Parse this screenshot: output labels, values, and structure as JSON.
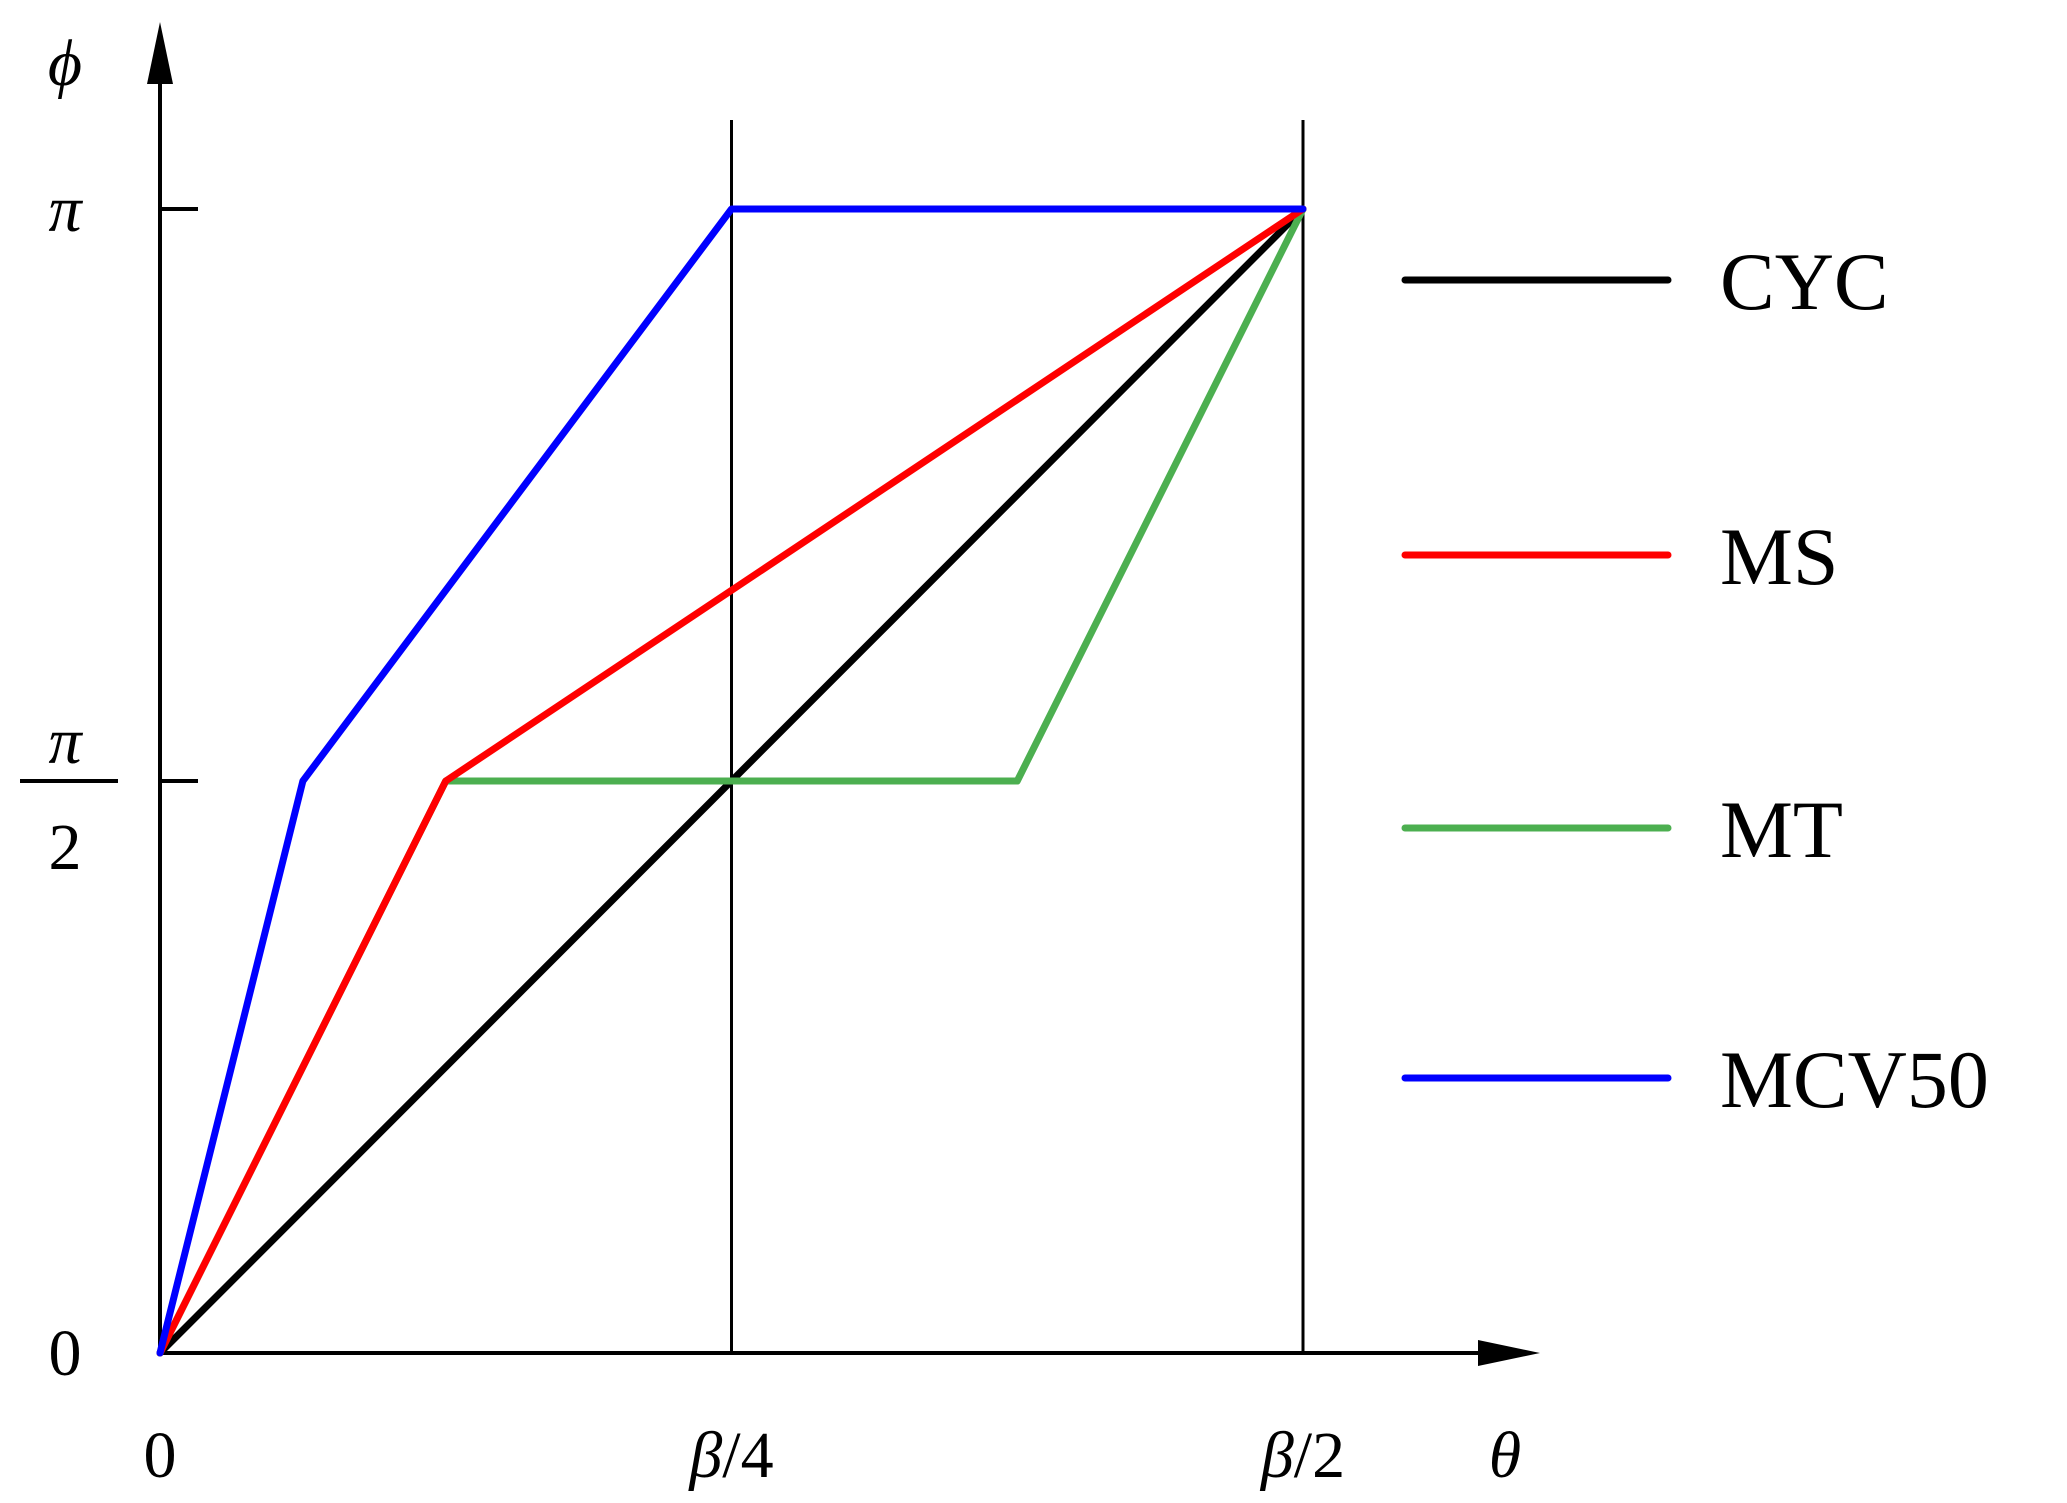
{
  "chart_data": {
    "type": "line",
    "xlabel": "θ",
    "ylabel": "ϕ",
    "x_unit": "β",
    "y_unit": "π",
    "xlim": [
      0,
      0.5
    ],
    "ylim": [
      0,
      1
    ],
    "x_ticks": [
      {
        "value": 0,
        "label": "0"
      },
      {
        "value": 0.25,
        "label": "β/4"
      },
      {
        "value": 0.5,
        "label": "β/2"
      }
    ],
    "y_ticks": [
      {
        "value": 0,
        "label": "0"
      },
      {
        "value": 0.5,
        "label": "π/2",
        "numerator": "π",
        "denominator": "2"
      },
      {
        "value": 1,
        "label": "π"
      }
    ],
    "vertical_lines": [
      0.25,
      0.5
    ],
    "grid": false,
    "legend_position": "right",
    "series": [
      {
        "name": "CYC",
        "color": "#000000",
        "x": [
          0,
          0.5
        ],
        "y": [
          0,
          1
        ]
      },
      {
        "name": "MS",
        "color": "#ff0000",
        "x": [
          0,
          0.125,
          0.5
        ],
        "y": [
          0,
          0.5,
          1
        ]
      },
      {
        "name": "MT",
        "color": "#4caf50",
        "x": [
          0,
          0.125,
          0.375,
          0.5
        ],
        "y": [
          0,
          0.5,
          0.5,
          1
        ]
      },
      {
        "name": "MCV50",
        "color": "#0000ff",
        "x": [
          0,
          0.0625,
          0.25,
          0.5
        ],
        "y": [
          0,
          0.5,
          1,
          1
        ]
      }
    ]
  }
}
